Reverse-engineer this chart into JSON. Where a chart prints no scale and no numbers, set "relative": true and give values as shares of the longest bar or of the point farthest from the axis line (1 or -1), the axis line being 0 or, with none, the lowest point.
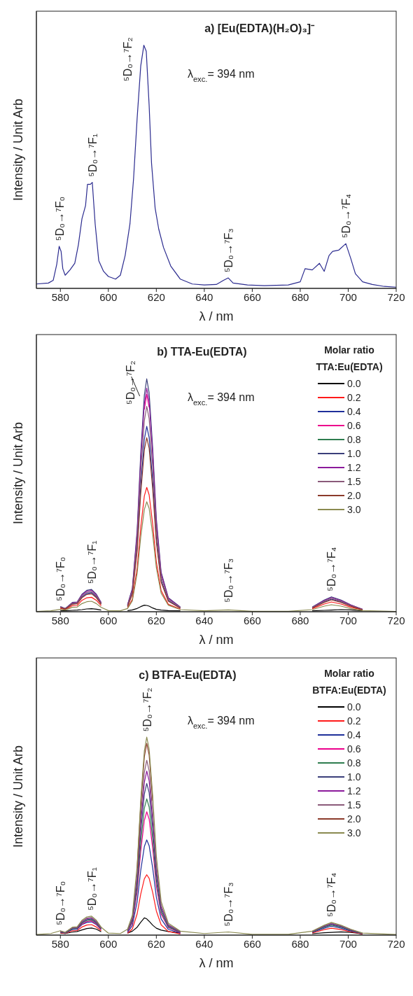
{
  "chart_data": [
    {
      "type": "line",
      "title": "a) [Eu(EDTA)(H₂O)₃]⁻",
      "xlabel": "λ / nm",
      "ylabel": "Intensity / Unit Arb",
      "relative": true,
      "xlim": [
        570,
        720
      ],
      "xticks": [
        580,
        600,
        620,
        640,
        660,
        680,
        700,
        720
      ],
      "color": "#2b2b8f",
      "x": [
        570,
        575,
        577,
        578.5,
        579.5,
        580.3,
        581,
        582,
        584,
        586,
        587.5,
        589,
        590.5,
        591.3,
        592.5,
        593.3,
        594.5,
        596,
        598,
        600,
        603,
        605,
        607,
        609,
        610.5,
        612,
        613.5,
        614.8,
        615.8,
        617,
        618,
        619.5,
        621,
        623,
        626,
        630,
        635,
        640,
        645,
        648,
        650,
        652,
        658,
        665,
        675,
        680,
        682,
        685,
        688,
        690,
        692,
        693.5,
        696,
        699,
        701,
        703,
        706,
        710,
        715,
        720
      ],
      "values": [
        0.018,
        0.022,
        0.033,
        0.1,
        0.173,
        0.152,
        0.081,
        0.054,
        0.076,
        0.103,
        0.179,
        0.287,
        0.341,
        0.428,
        0.428,
        0.436,
        0.265,
        0.114,
        0.07,
        0.049,
        0.038,
        0.054,
        0.135,
        0.265,
        0.45,
        0.7,
        0.915,
        1.0,
        0.975,
        0.753,
        0.515,
        0.33,
        0.244,
        0.168,
        0.092,
        0.038,
        0.018,
        0.014,
        0.016,
        0.033,
        0.043,
        0.022,
        0.014,
        0.011,
        0.014,
        0.027,
        0.081,
        0.076,
        0.103,
        0.07,
        0.135,
        0.152,
        0.157,
        0.184,
        0.125,
        0.06,
        0.027,
        0.016,
        0.008,
        0.005
      ],
      "annotations": [
        "λ$_{exc.}$= 394 nm",
        {
          "text": "⁵D₀→⁷F₀",
          "x": 579.5,
          "y": 0.173
        },
        {
          "text": "⁵D₀→⁷F₁",
          "x": 593.3,
          "y": 0.436
        },
        {
          "text": "⁵D₀→⁷F₂",
          "x": 614.8,
          "y": 1.0
        },
        {
          "text": "⁵D₀→⁷F₃",
          "x": 650,
          "y": 0.043
        },
        {
          "text": "⁵D₀→⁷F₄",
          "x": 699,
          "y": 0.184
        }
      ]
    },
    {
      "type": "line",
      "title": "b) TTA-Eu(EDTA)",
      "xlabel": "λ / nm",
      "ylabel": "Intensity / Unit Arb",
      "relative": true,
      "xlim": [
        570,
        720
      ],
      "xticks": [
        580,
        600,
        620,
        640,
        660,
        680,
        700,
        720
      ],
      "legend": "top right",
      "legend_title": "Molar ratio TTA:Eu(EDTA)",
      "x": [
        570,
        576,
        580,
        582,
        585,
        587,
        589,
        591,
        593,
        595,
        597,
        600,
        605,
        608,
        610,
        612,
        613.5,
        615,
        616,
        617,
        618.5,
        620,
        622,
        625,
        630,
        640,
        650,
        660,
        675,
        685,
        690,
        693,
        697,
        701,
        706,
        720
      ],
      "series": [
        {
          "name": "0.0",
          "color": "#000000",
          "values": [
            null,
            null,
            0.004,
            0.004,
            0.006,
            0.007,
            0.009,
            0.012,
            0.013,
            0.011,
            0.007,
            null,
            null,
            0.005,
            0.008,
            0.014,
            0.022,
            0.028,
            0.027,
            0.024,
            0.016,
            0.01,
            0.007,
            0.005,
            0.004,
            null,
            null,
            null,
            null,
            0.004,
            0.006,
            0.007,
            0.009,
            0.008,
            0.004,
            null
          ]
        },
        {
          "name": "0.2",
          "color": "#ff1a1a",
          "values": [
            null,
            null,
            0.014,
            0.009,
            0.026,
            0.027,
            0.049,
            0.06,
            0.062,
            0.049,
            0.026,
            null,
            null,
            0.016,
            0.053,
            0.187,
            0.363,
            0.497,
            0.534,
            0.502,
            0.374,
            0.214,
            0.091,
            0.032,
            0.011,
            null,
            null,
            null,
            null,
            0.013,
            0.033,
            0.042,
            0.033,
            0.02,
            0.007,
            null
          ]
        },
        {
          "name": "0.4",
          "color": "#1f2f9a",
          "values": [
            null,
            null,
            0.019,
            0.012,
            0.034,
            0.036,
            0.064,
            0.078,
            0.082,
            0.064,
            0.034,
            null,
            null,
            0.024,
            0.08,
            0.279,
            0.541,
            0.74,
            0.796,
            0.748,
            0.557,
            0.318,
            0.135,
            0.048,
            0.016,
            null,
            null,
            null,
            null,
            0.017,
            0.043,
            0.054,
            0.043,
            0.026,
            0.009,
            null
          ]
        },
        {
          "name": "0.6",
          "color": "#ec008c",
          "values": [
            null,
            null,
            null,
            null,
            null,
            null,
            null,
            null,
            null,
            null,
            null,
            null,
            null,
            null,
            null,
            null,
            null,
            0.868,
            0.933,
            0.877,
            null,
            null,
            null,
            null,
            null,
            null,
            null,
            null,
            null,
            null,
            null,
            null,
            null,
            null,
            null,
            null
          ]
        },
        {
          "name": "0.8",
          "color": "#2e7d4f",
          "values": [
            null,
            null,
            null,
            null,
            null,
            null,
            null,
            null,
            null,
            null,
            null,
            null,
            null,
            null,
            null,
            null,
            null,
            null,
            null,
            null,
            null,
            null,
            null,
            null,
            null,
            null,
            null,
            null,
            null,
            null,
            null,
            null,
            null,
            null,
            null,
            null
          ]
        },
        {
          "name": "1.0",
          "color": "#3a3f7a",
          "values": [
            null,
            null,
            0.022,
            0.014,
            0.04,
            0.042,
            0.075,
            0.092,
            0.096,
            0.075,
            0.04,
            null,
            null,
            0.03,
            0.1,
            0.35,
            0.68,
            0.93,
            1.0,
            0.94,
            0.7,
            0.4,
            0.17,
            0.06,
            0.02,
            null,
            null,
            null,
            null,
            0.02,
            0.05,
            0.064,
            0.05,
            0.03,
            0.01,
            null
          ]
        },
        {
          "name": "1.2",
          "color": "#8b1a9b",
          "values": [
            null,
            null,
            0.021,
            0.013,
            0.038,
            0.04,
            0.072,
            0.088,
            0.092,
            0.072,
            0.038,
            null,
            null,
            0.029,
            0.096,
            0.336,
            0.653,
            0.893,
            0.96,
            0.902,
            0.672,
            0.384,
            0.163,
            0.058,
            0.019,
            null,
            null,
            null,
            null,
            0.019,
            0.048,
            0.061,
            0.048,
            0.029,
            0.01,
            null
          ]
        },
        {
          "name": "1.5",
          "color": "#8a5a7a",
          "values": [
            null,
            null,
            0.02,
            0.013,
            0.036,
            0.038,
            0.068,
            0.083,
            0.086,
            0.068,
            0.036,
            null,
            null,
            0.026,
            0.088,
            0.309,
            0.6,
            0.82,
            0.882,
            0.829,
            0.617,
            0.353,
            0.15,
            0.053,
            0.018,
            null,
            null,
            null,
            null,
            0.018,
            0.045,
            0.058,
            0.045,
            0.027,
            0.009,
            null
          ]
        },
        {
          "name": "2.0",
          "color": "#8b3a2a",
          "values": [
            null,
            null,
            0.018,
            0.011,
            0.032,
            0.034,
            0.06,
            0.074,
            0.077,
            0.06,
            0.032,
            null,
            null,
            0.022,
            0.075,
            0.261,
            0.508,
            0.695,
            0.747,
            0.702,
            0.523,
            0.299,
            0.127,
            0.045,
            0.015,
            null,
            null,
            null,
            null,
            0.016,
            0.04,
            0.051,
            0.04,
            0.024,
            0.008,
            null
          ]
        },
        {
          "name": "3.0",
          "color": "#8a8a50",
          "values": [
            0.001,
            0.004,
            0.01,
            0.007,
            0.019,
            0.02,
            0.035,
            0.043,
            0.045,
            0.035,
            0.019,
            0.005,
            0.004,
            0.014,
            0.047,
            0.165,
            0.321,
            0.439,
            0.472,
            0.444,
            0.33,
            0.189,
            0.08,
            0.028,
            0.009,
            0.004,
            0.008,
            0.002,
            0.002,
            0.009,
            0.024,
            0.03,
            0.024,
            0.014,
            0.005,
            0.001
          ]
        }
      ],
      "annotations": [
        "λ$_{exc.}$= 394 nm",
        {
          "text": "⁵D₀→⁷F₀",
          "x": 580,
          "y": 0.022
        },
        {
          "text": "⁵D₀→⁷F₁",
          "x": 593,
          "y": 0.096
        },
        {
          "text": "⁵D₀→⁷F₂",
          "x": 616,
          "y": 1.0
        },
        {
          "text": "⁵D₀→⁷F₃",
          "x": 650,
          "y": 0.016
        },
        {
          "text": "⁵D₀→⁷F₄",
          "x": 693,
          "y": 0.064
        }
      ]
    },
    {
      "type": "line",
      "title": "c) BTFA-Eu(EDTA)",
      "xlabel": "λ / nm",
      "ylabel": "Intensity / Unit Arb",
      "relative": true,
      "xlim": [
        570,
        720
      ],
      "xticks": [
        580,
        600,
        620,
        640,
        660,
        680,
        700,
        720
      ],
      "legend": "top right",
      "legend_title": "Molar ratio BTFA:Eu(EDTA)",
      "x": [
        570,
        576,
        580,
        582,
        585,
        587,
        589,
        591,
        593,
        595,
        597,
        600,
        605,
        608,
        610,
        612,
        613.5,
        615,
        616,
        617,
        618.5,
        620,
        622,
        625,
        630,
        640,
        650,
        660,
        675,
        685,
        690,
        693,
        697,
        701,
        706,
        720
      ],
      "series": [
        {
          "name": "0.0",
          "color": "#000000",
          "values": [
            null,
            null,
            0.01,
            0.008,
            0.015,
            0.018,
            0.026,
            0.033,
            0.036,
            0.03,
            0.017,
            null,
            null,
            0.01,
            0.02,
            0.04,
            0.065,
            0.087,
            0.082,
            0.07,
            0.05,
            0.035,
            0.025,
            0.018,
            0.01,
            null,
            null,
            null,
            null,
            0.007,
            0.012,
            0.014,
            0.016,
            0.014,
            0.006,
            null
          ]
        },
        {
          "name": "0.2",
          "color": "#ff1a1a",
          "values": [
            null,
            null,
            0.012,
            0.008,
            0.022,
            0.023,
            0.041,
            0.051,
            0.053,
            0.041,
            0.022,
            null,
            null,
            0.009,
            0.031,
            0.107,
            0.207,
            0.284,
            0.305,
            0.287,
            0.214,
            0.122,
            0.052,
            0.018,
            0.006,
            null,
            null,
            null,
            null,
            0.011,
            0.028,
            0.035,
            0.028,
            0.017,
            0.006,
            null
          ]
        },
        {
          "name": "0.4",
          "color": "#1f2f9a",
          "values": [
            null,
            null,
            0.015,
            0.01,
            0.028,
            0.029,
            0.053,
            0.064,
            0.067,
            0.053,
            0.028,
            null,
            null,
            0.014,
            0.048,
            0.168,
            0.327,
            0.447,
            0.481,
            0.452,
            0.337,
            0.192,
            0.082,
            0.029,
            0.01,
            null,
            null,
            null,
            null,
            0.014,
            0.035,
            0.045,
            0.035,
            0.021,
            0.007,
            null
          ]
        },
        {
          "name": "0.6",
          "color": "#ec008c",
          "values": [
            null,
            null,
            null,
            null,
            null,
            0.032,
            0.056,
            0.069,
            0.072,
            0.056,
            0.03,
            null,
            null,
            0.019,
            0.062,
            0.218,
            0.424,
            0.579,
            0.623,
            0.586,
            0.436,
            0.249,
            0.106,
            0.037,
            0.012,
            null,
            null,
            null,
            null,
            null,
            null,
            null,
            null,
            null,
            null,
            null
          ]
        },
        {
          "name": "0.8",
          "color": "#2e7d4f",
          "values": [
            null,
            null,
            0.018,
            0.011,
            0.032,
            0.034,
            0.06,
            0.074,
            0.077,
            0.06,
            0.032,
            null,
            null,
            0.021,
            0.069,
            0.241,
            0.468,
            0.64,
            0.688,
            0.647,
            0.482,
            0.275,
            0.117,
            0.041,
            0.014,
            null,
            null,
            null,
            null,
            0.016,
            0.04,
            0.051,
            0.04,
            0.024,
            0.008,
            null
          ]
        },
        {
          "name": "1.0",
          "color": "#3a3f7a",
          "values": [
            null,
            null,
            0.019,
            0.012,
            0.034,
            0.036,
            0.064,
            0.078,
            0.082,
            0.064,
            0.034,
            null,
            null,
            0.023,
            0.077,
            0.268,
            0.521,
            0.712,
            0.766,
            0.72,
            0.536,
            0.306,
            0.13,
            0.046,
            0.015,
            null,
            null,
            null,
            null,
            0.017,
            0.043,
            0.054,
            0.043,
            0.026,
            0.009,
            null
          ]
        },
        {
          "name": "1.2",
          "color": "#8b1a9b",
          "values": [
            null,
            null,
            0.02,
            0.013,
            0.036,
            0.038,
            0.068,
            0.083,
            0.086,
            0.068,
            0.036,
            null,
            null,
            0.025,
            0.083,
            0.29,
            0.564,
            0.771,
            0.829,
            0.779,
            0.58,
            0.332,
            0.141,
            0.05,
            0.017,
            null,
            null,
            null,
            null,
            0.018,
            0.045,
            0.058,
            0.045,
            0.027,
            0.009,
            null
          ]
        },
        {
          "name": "1.5",
          "color": "#8a5a7a",
          "values": [
            null,
            null,
            0.02,
            0.013,
            0.037,
            0.039,
            0.07,
            0.086,
            0.089,
            0.07,
            0.037,
            null,
            null,
            0.026,
            0.088,
            0.309,
            0.6,
            0.821,
            0.883,
            0.83,
            0.618,
            0.353,
            0.15,
            0.053,
            0.018,
            null,
            null,
            null,
            null,
            0.019,
            0.047,
            0.06,
            0.047,
            0.028,
            0.009,
            null
          ]
        },
        {
          "name": "2.0",
          "color": "#8b3a2a",
          "values": [
            null,
            null,
            null,
            null,
            null,
            null,
            null,
            null,
            null,
            null,
            null,
            null,
            null,
            null,
            null,
            0.339,
            0.658,
            0.9,
            0.968,
            0.91,
            0.678,
            null,
            null,
            null,
            null,
            null,
            null,
            null,
            null,
            null,
            null,
            null,
            null,
            null,
            null,
            null
          ]
        },
        {
          "name": "3.0",
          "color": "#8a8a50",
          "values": [
            0.003,
            0.008,
            0.022,
            0.014,
            0.04,
            0.042,
            0.075,
            0.092,
            0.096,
            0.075,
            0.04,
            0.01,
            0.008,
            0.03,
            0.1,
            0.35,
            0.68,
            0.93,
            1.0,
            0.94,
            0.7,
            0.4,
            0.17,
            0.06,
            0.02,
            0.008,
            0.016,
            0.004,
            0.004,
            0.02,
            0.05,
            0.064,
            0.05,
            0.03,
            0.01,
            0.003
          ]
        }
      ],
      "annotations": [
        "λ$_{exc.}$= 394 nm",
        {
          "text": "⁵D₀→⁷F₀",
          "x": 580,
          "y": 0.022
        },
        {
          "text": "⁵D₀→⁷F₁",
          "x": 593,
          "y": 0.096
        },
        {
          "text": "⁵D₀→⁷F₂",
          "x": 616,
          "y": 1.0
        },
        {
          "text": "⁵D₀→⁷F₃",
          "x": 650,
          "y": 0.016
        },
        {
          "text": "⁵D₀→⁷F₄",
          "x": 693,
          "y": 0.064
        }
      ]
    }
  ]
}
